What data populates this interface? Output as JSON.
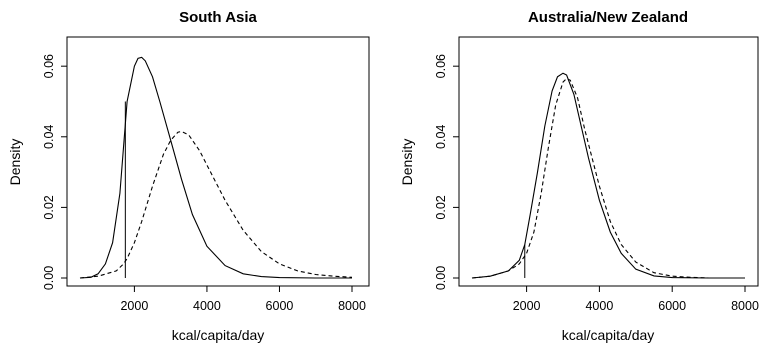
{
  "chart_data": [
    {
      "type": "line",
      "title": "South Asia",
      "xlabel": "kcal/capita/day",
      "ylabel": "Density",
      "xlim": [
        500,
        8000
      ],
      "ylim": [
        0,
        0.066
      ],
      "x_ticks": [
        2000,
        4000,
        6000,
        8000
      ],
      "y_ticks": [
        0.0,
        0.02,
        0.04,
        0.06
      ],
      "y_tick_labels": [
        "0.00",
        "0.02",
        "0.04",
        "0.06"
      ],
      "grid": false,
      "series": [
        {
          "style": "solid",
          "x": [
            500,
            800,
            1000,
            1200,
            1400,
            1600,
            1800,
            2000,
            2100,
            2200,
            2300,
            2500,
            2700,
            3000,
            3300,
            3600,
            4000,
            4500,
            5000,
            5500,
            6000,
            7000,
            8000
          ],
          "y": [
            0.0,
            0.0002,
            0.0012,
            0.004,
            0.01,
            0.024,
            0.05,
            0.06,
            0.0622,
            0.0625,
            0.0615,
            0.057,
            0.05,
            0.039,
            0.028,
            0.018,
            0.009,
            0.0035,
            0.0012,
            0.0004,
            0.0001,
            0.0,
            0.0
          ]
        },
        {
          "style": "dashed",
          "x": [
            500,
            1000,
            1500,
            1700,
            1800,
            2000,
            2200,
            2500,
            2800,
            3000,
            3200,
            3300,
            3500,
            3800,
            4000,
            4500,
            5000,
            5500,
            6000,
            6500,
            7000,
            7500,
            8000
          ],
          "y": [
            0.0,
            0.0005,
            0.002,
            0.004,
            0.0055,
            0.01,
            0.016,
            0.026,
            0.035,
            0.039,
            0.0413,
            0.0415,
            0.0405,
            0.036,
            0.032,
            0.022,
            0.0135,
            0.0075,
            0.004,
            0.002,
            0.001,
            0.0005,
            0.0002
          ]
        }
      ],
      "annotations": [
        {
          "type": "vertical-line",
          "x": 1750,
          "y_from": 0,
          "y_to": 0.05
        }
      ]
    },
    {
      "type": "line",
      "title": "Australia/New Zealand",
      "xlabel": "kcal/capita/day",
      "ylabel": "Density",
      "xlim": [
        500,
        8000
      ],
      "ylim": [
        0,
        0.066
      ],
      "x_ticks": [
        2000,
        4000,
        6000,
        8000
      ],
      "y_ticks": [
        0.0,
        0.02,
        0.04,
        0.06
      ],
      "y_tick_labels": [
        "0.00",
        "0.02",
        "0.04",
        "0.06"
      ],
      "grid": false,
      "series": [
        {
          "style": "solid",
          "x": [
            500,
            1000,
            1500,
            1800,
            1950,
            2100,
            2300,
            2500,
            2700,
            2850,
            3000,
            3100,
            3300,
            3500,
            3700,
            4000,
            4300,
            4600,
            5000,
            5500,
            6000,
            7000,
            8000
          ],
          "y": [
            0.0,
            0.0005,
            0.002,
            0.005,
            0.0095,
            0.018,
            0.03,
            0.043,
            0.053,
            0.057,
            0.058,
            0.0575,
            0.052,
            0.043,
            0.034,
            0.022,
            0.013,
            0.007,
            0.0025,
            0.0006,
            0.0001,
            0.0,
            0.0
          ]
        },
        {
          "style": "dashed",
          "x": [
            500,
            1000,
            1500,
            1800,
            2000,
            2200,
            2400,
            2600,
            2800,
            3000,
            3100,
            3200,
            3400,
            3600,
            3800,
            4000,
            4300,
            4600,
            5000,
            5500,
            6000,
            6500,
            7000
          ],
          "y": [
            0.0,
            0.0005,
            0.002,
            0.004,
            0.007,
            0.013,
            0.024,
            0.037,
            0.049,
            0.0555,
            0.0565,
            0.056,
            0.051,
            0.042,
            0.034,
            0.026,
            0.016,
            0.0095,
            0.0045,
            0.0015,
            0.0005,
            0.0002,
            0.0
          ]
        }
      ],
      "annotations": [
        {
          "type": "vertical-line",
          "x": 1950,
          "y_from": 0,
          "y_to": 0.0095
        }
      ]
    }
  ]
}
